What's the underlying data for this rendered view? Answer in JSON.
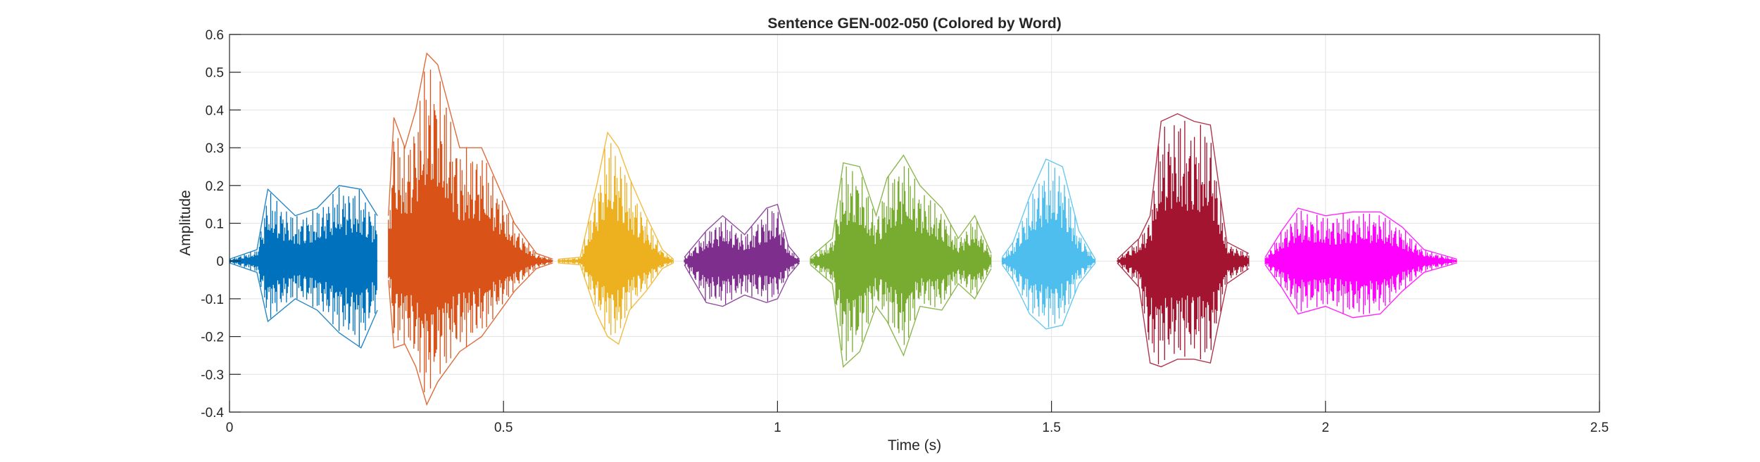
{
  "chart_data": {
    "type": "line",
    "title": "Sentence GEN-002-050 (Colored by Word)",
    "xlabel": "Time (s)",
    "ylabel": "Amplitude",
    "xlim": [
      0,
      2.5
    ],
    "ylim": [
      -0.4,
      0.6
    ],
    "xticks": [
      0,
      0.5,
      1,
      1.5,
      2,
      2.5
    ],
    "xtick_labels": [
      "0",
      "0.5",
      "1",
      "1.5",
      "2",
      "2.5"
    ],
    "yticks": [
      -0.4,
      -0.3,
      -0.2,
      -0.1,
      0,
      0.1,
      0.2,
      0.3,
      0.4,
      0.5,
      0.6
    ],
    "ytick_labels": [
      "-0.4",
      "-0.3",
      "-0.2",
      "-0.1",
      "0",
      "0.1",
      "0.2",
      "0.3",
      "0.4",
      "0.5",
      "0.6"
    ],
    "grid": true,
    "series": [
      {
        "color": "#0072BD",
        "x": [
          0.0,
          0.05,
          0.07,
          0.12,
          0.16,
          0.2,
          0.24,
          0.27
        ],
        "y_max": [
          0.005,
          0.03,
          0.19,
          0.12,
          0.14,
          0.2,
          0.19,
          0.12
        ],
        "y_min": [
          -0.005,
          -0.03,
          -0.16,
          -0.1,
          -0.13,
          -0.19,
          -0.23,
          -0.13
        ]
      },
      {
        "color": "#D95319",
        "x": [
          0.29,
          0.3,
          0.32,
          0.34,
          0.36,
          0.38,
          0.42,
          0.46,
          0.52,
          0.56,
          0.59
        ],
        "y_max": [
          0.12,
          0.38,
          0.3,
          0.4,
          0.55,
          0.52,
          0.3,
          0.3,
          0.1,
          0.02,
          0.005
        ],
        "y_min": [
          -0.05,
          -0.23,
          -0.22,
          -0.28,
          -0.38,
          -0.32,
          -0.24,
          -0.2,
          -0.08,
          -0.02,
          -0.005
        ]
      },
      {
        "color": "#EDB120",
        "x": [
          0.6,
          0.64,
          0.67,
          0.69,
          0.71,
          0.73,
          0.76,
          0.79,
          0.81
        ],
        "y_max": [
          0.005,
          0.01,
          0.2,
          0.34,
          0.3,
          0.22,
          0.12,
          0.03,
          0.005
        ],
        "y_min": [
          -0.005,
          -0.01,
          -0.14,
          -0.2,
          -0.22,
          -0.13,
          -0.08,
          -0.02,
          -0.005
        ]
      },
      {
        "color": "#7E2F8E",
        "x": [
          0.83,
          0.87,
          0.9,
          0.94,
          0.98,
          1.0,
          1.02,
          1.04
        ],
        "y_max": [
          0.01,
          0.08,
          0.12,
          0.07,
          0.14,
          0.15,
          0.04,
          0.005
        ],
        "y_min": [
          -0.01,
          -0.11,
          -0.12,
          -0.09,
          -0.11,
          -0.1,
          -0.04,
          -0.005
        ]
      },
      {
        "color": "#77AC30",
        "x": [
          1.06,
          1.1,
          1.12,
          1.15,
          1.18,
          1.2,
          1.23,
          1.26,
          1.3,
          1.33,
          1.36,
          1.39
        ],
        "y_max": [
          0.01,
          0.06,
          0.26,
          0.25,
          0.12,
          0.22,
          0.28,
          0.2,
          0.14,
          0.06,
          0.12,
          0.02
        ],
        "y_min": [
          -0.01,
          -0.06,
          -0.28,
          -0.24,
          -0.12,
          -0.16,
          -0.25,
          -0.12,
          -0.13,
          -0.06,
          -0.1,
          -0.02
        ]
      },
      {
        "color": "#4DBEEE",
        "x": [
          1.41,
          1.43,
          1.46,
          1.49,
          1.52,
          1.55,
          1.58
        ],
        "y_max": [
          0.01,
          0.05,
          0.17,
          0.27,
          0.25,
          0.08,
          0.005
        ],
        "y_min": [
          -0.01,
          -0.05,
          -0.14,
          -0.18,
          -0.17,
          -0.06,
          -0.005
        ]
      },
      {
        "color": "#A2142F",
        "x": [
          1.62,
          1.66,
          1.68,
          1.7,
          1.73,
          1.76,
          1.79,
          1.82,
          1.86
        ],
        "y_max": [
          0.005,
          0.06,
          0.12,
          0.37,
          0.39,
          0.37,
          0.36,
          0.05,
          0.02
        ],
        "y_min": [
          -0.005,
          -0.07,
          -0.27,
          -0.28,
          -0.26,
          -0.26,
          -0.27,
          -0.06,
          -0.02
        ]
      },
      {
        "color": "#FF00FF",
        "x": [
          1.89,
          1.92,
          1.95,
          2.0,
          2.05,
          2.1,
          2.14,
          2.18,
          2.24
        ],
        "y_max": [
          0.01,
          0.08,
          0.14,
          0.12,
          0.13,
          0.13,
          0.09,
          0.03,
          0.005
        ],
        "y_min": [
          -0.01,
          -0.07,
          -0.14,
          -0.12,
          -0.15,
          -0.14,
          -0.08,
          -0.03,
          -0.005
        ]
      }
    ]
  }
}
